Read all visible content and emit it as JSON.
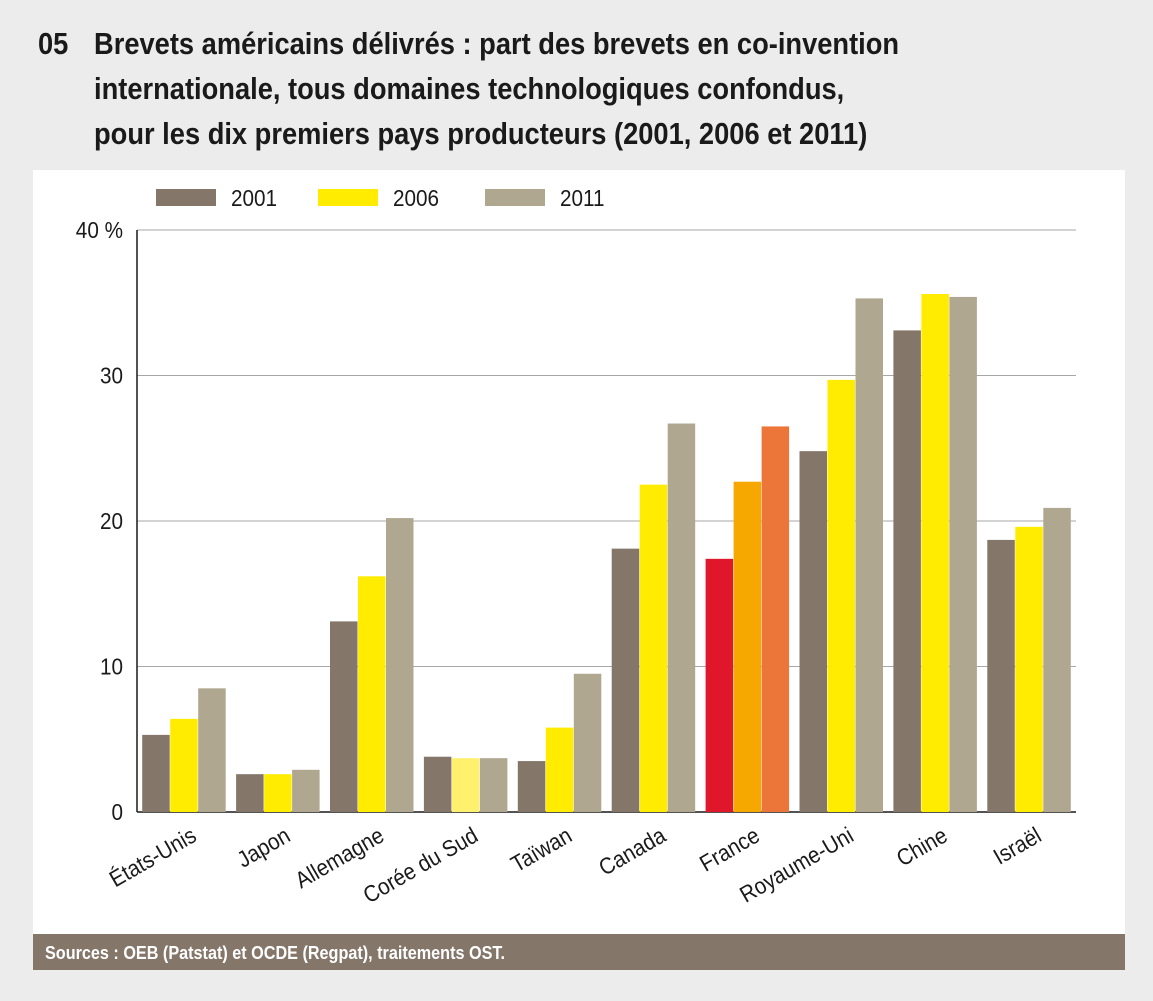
{
  "figure": {
    "number": "05",
    "title_lines": [
      "Brevets américains délivrés : part des brevets en co-invention",
      "internationale, tous domaines technologiques confondus,",
      "pour les dix premiers pays producteurs (2001, 2006 et 2011)"
    ],
    "source": "Sources : OEB (Patstat) et OCDE (Regpat), traitements OST."
  },
  "chart_data": {
    "type": "bar",
    "categories": [
      "États-Unis",
      "Japon",
      "Allemagne",
      "Corée du Sud",
      "Taïwan",
      "Canada",
      "France",
      "Royaume-Uni",
      "Chine",
      "Israël"
    ],
    "series": [
      {
        "name": "2001",
        "color": "#85766a",
        "values": [
          5.3,
          2.6,
          13.1,
          3.8,
          3.5,
          18.1,
          17.4,
          24.8,
          33.1,
          18.7
        ]
      },
      {
        "name": "2006",
        "color": "#ffec00",
        "values": [
          6.4,
          2.6,
          16.2,
          3.7,
          5.8,
          22.5,
          22.7,
          29.7,
          35.6,
          19.6
        ]
      },
      {
        "name": "2011",
        "color": "#b0a791",
        "values": [
          8.5,
          2.9,
          20.2,
          3.7,
          9.5,
          26.7,
          26.5,
          35.3,
          35.4,
          20.9
        ]
      }
    ],
    "highlight": {
      "category": "France",
      "colors": [
        "#e0162b",
        "#f7a800",
        "#ec7639"
      ]
    },
    "highlight_colors_by_category": {
      "Corée du Sud": [
        "#85766a",
        "#fff06e",
        "#b0a791"
      ]
    },
    "y_ticks": [
      {
        "value": 0,
        "label": "0"
      },
      {
        "value": 10,
        "label": "10"
      },
      {
        "value": 20,
        "label": "20"
      },
      {
        "value": 30,
        "label": "30"
      },
      {
        "value": 40,
        "label": "40 %"
      }
    ],
    "ylim": [
      0,
      40
    ],
    "grid": true,
    "legend_position": "top-left"
  }
}
